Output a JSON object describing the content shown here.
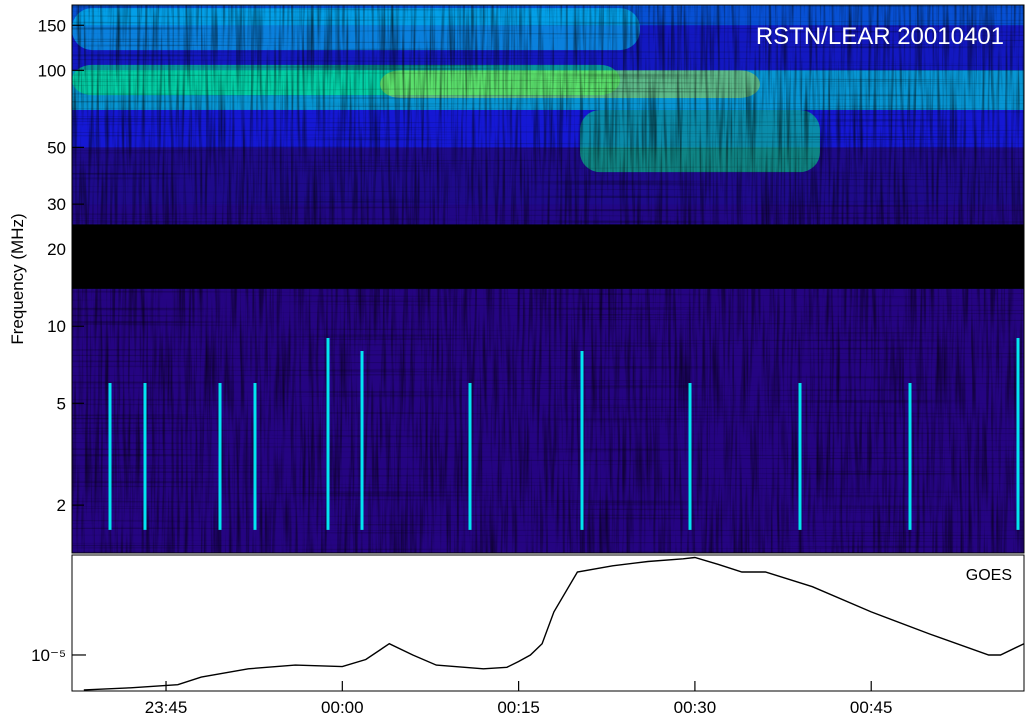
{
  "chart_data": [
    {
      "type": "heatmap",
      "title": "RSTN/LEAR 20010401",
      "ylabel": "Frequency (MHz)",
      "yscale": "log",
      "ylim": [
        1.3,
        180
      ],
      "yticks": [
        2,
        5,
        10,
        20,
        30,
        50,
        100,
        150
      ],
      "ytick_labels": [
        "2",
        "5",
        "10",
        "20",
        "30",
        "50",
        "100",
        "150"
      ],
      "no_data_band_mhz": [
        14,
        25
      ],
      "colormap": [
        "#000000",
        "#2a007a",
        "#1a1aff",
        "#0080ff",
        "#00ffff",
        "#00ff80",
        "#ffff00"
      ]
    },
    {
      "type": "line",
      "label": "GOES",
      "yscale": "log",
      "ylim": [
        5.6e-06,
        5e-05
      ],
      "yticks": [
        1e-05
      ],
      "ytick_labels": [
        "10⁻⁵"
      ],
      "xlim": [
        "23:37",
        "00:58"
      ],
      "xticks": [
        "23:45",
        "00:00",
        "00:15",
        "00:30",
        "00:45"
      ],
      "xtick_labels": [
        "23:45",
        "00:00",
        "00:15",
        "00:30",
        "00:45"
      ],
      "x": [
        "23:38",
        "23:42",
        "23:46",
        "23:48",
        "23:52",
        "23:56",
        "00:00",
        "00:02",
        "00:04",
        "00:06",
        "00:08",
        "00:12",
        "00:14",
        "00:15",
        "00:16",
        "00:17",
        "00:18",
        "00:20",
        "00:23",
        "00:26",
        "00:29",
        "00:30",
        "00:32",
        "00:34",
        "00:36",
        "00:40",
        "00:45",
        "00:50",
        "00:55",
        "00:56",
        "00:58"
      ],
      "values": [
        5.7e-06,
        5.9e-06,
        6.2e-06,
        7e-06,
        8e-06,
        8.5e-06,
        8.3e-06,
        9.3e-06,
        1.2e-05,
        1e-05,
        8.5e-06,
        8e-06,
        8.2e-06,
        9e-06,
        1e-05,
        1.2e-05,
        2e-05,
        3.8e-05,
        4.2e-05,
        4.5e-05,
        4.7e-05,
        4.8e-05,
        4.3e-05,
        3.8e-05,
        3.8e-05,
        3e-05,
        2e-05,
        1.4e-05,
        1e-05,
        1e-05,
        1.2e-05
      ]
    }
  ]
}
